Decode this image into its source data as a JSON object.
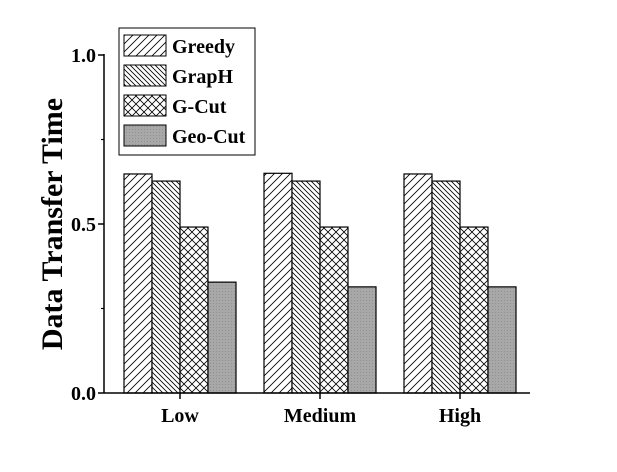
{
  "chart_data": {
    "type": "bar",
    "title": "",
    "xlabel": "",
    "ylabel": "Data Transfer Time",
    "ylim": [
      0,
      1.0
    ],
    "yticks": [
      "0.0",
      "0.5",
      "1.0"
    ],
    "ytick_values": [
      0.0,
      0.5,
      1.0
    ],
    "minor_ytick_values": [
      0.25,
      0.75
    ],
    "categories": [
      "Low",
      "Medium",
      "High"
    ],
    "legend_position": "top-left",
    "grid": false,
    "series": [
      {
        "name": "Greedy",
        "pattern": "diagonal-forward",
        "values": [
          0.648,
          0.65,
          0.648
        ]
      },
      {
        "name": "GrapH",
        "pattern": "diagonal-backward",
        "values": [
          0.627,
          0.627,
          0.627
        ]
      },
      {
        "name": "G-Cut",
        "pattern": "crosshatch",
        "values": [
          0.491,
          0.491,
          0.491
        ]
      },
      {
        "name": "Geo-Cut",
        "pattern": "solid-gray",
        "values": [
          0.328,
          0.314,
          0.314
        ]
      }
    ],
    "colors": {
      "axis": "#000000",
      "geo_fill": "#a8a8a8",
      "hatch": "#000000"
    }
  }
}
